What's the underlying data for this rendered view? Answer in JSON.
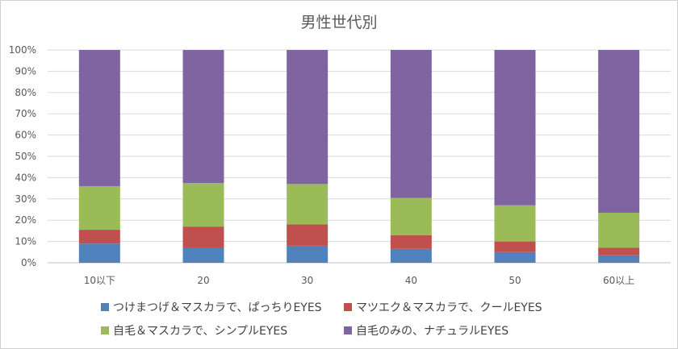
{
  "chart_data": {
    "type": "bar",
    "stacked": true,
    "title": "男性世代別",
    "categories": [
      "10以下",
      "20",
      "30",
      "40",
      "50",
      "60以上"
    ],
    "ylim": [
      0,
      100
    ],
    "yticks": [
      "0%",
      "10%",
      "20%",
      "30%",
      "40%",
      "50%",
      "60%",
      "70%",
      "80%",
      "90%",
      "100%"
    ],
    "grid": true,
    "legend_position": "bottom",
    "series": [
      {
        "name": "つけまつげ＆マスカラで、ぱっちりEYES",
        "color": "#4f81bd",
        "values": [
          9,
          7,
          8,
          6.5,
          5,
          3.5
        ]
      },
      {
        "name": "マツエク＆マスカラで、クールEYES",
        "color": "#c0504d",
        "values": [
          6.5,
          10,
          10,
          6.5,
          5,
          3.5
        ]
      },
      {
        "name": "自毛＆マスカラで、シンプルEYES",
        "color": "#9bbb59",
        "values": [
          20.5,
          20.5,
          19,
          17.5,
          17,
          16.5
        ]
      },
      {
        "name": "自毛のみの、ナチュラルEYES",
        "color": "#8064a2",
        "values": [
          64,
          62.5,
          63,
          69.5,
          73,
          76.5
        ]
      }
    ]
  }
}
